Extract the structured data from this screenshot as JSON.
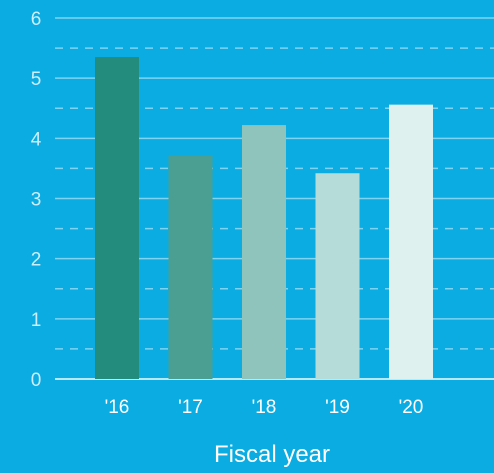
{
  "chart_data": {
    "type": "bar",
    "title": "",
    "xlabel": "Fiscal year",
    "ylabel": "",
    "categories": [
      "'16",
      "'17",
      "'18",
      "'19",
      "'20"
    ],
    "values": [
      5.35,
      3.72,
      4.22,
      3.42,
      4.56
    ],
    "ylim": [
      0,
      6
    ],
    "yticks": [
      "0",
      "1",
      "2",
      "3",
      "4",
      "5",
      "6"
    ],
    "grid": "solid lines at integers, dashed lines at half-units",
    "legend": "none",
    "colors": {
      "background": "#0aace2",
      "bars": [
        "#248c7c",
        "#4a9f92",
        "#8ec4bc",
        "#b5dcd8",
        "#dff1ef"
      ],
      "grid": "#7fd3f0",
      "tick_text": "#cdeefb"
    }
  }
}
